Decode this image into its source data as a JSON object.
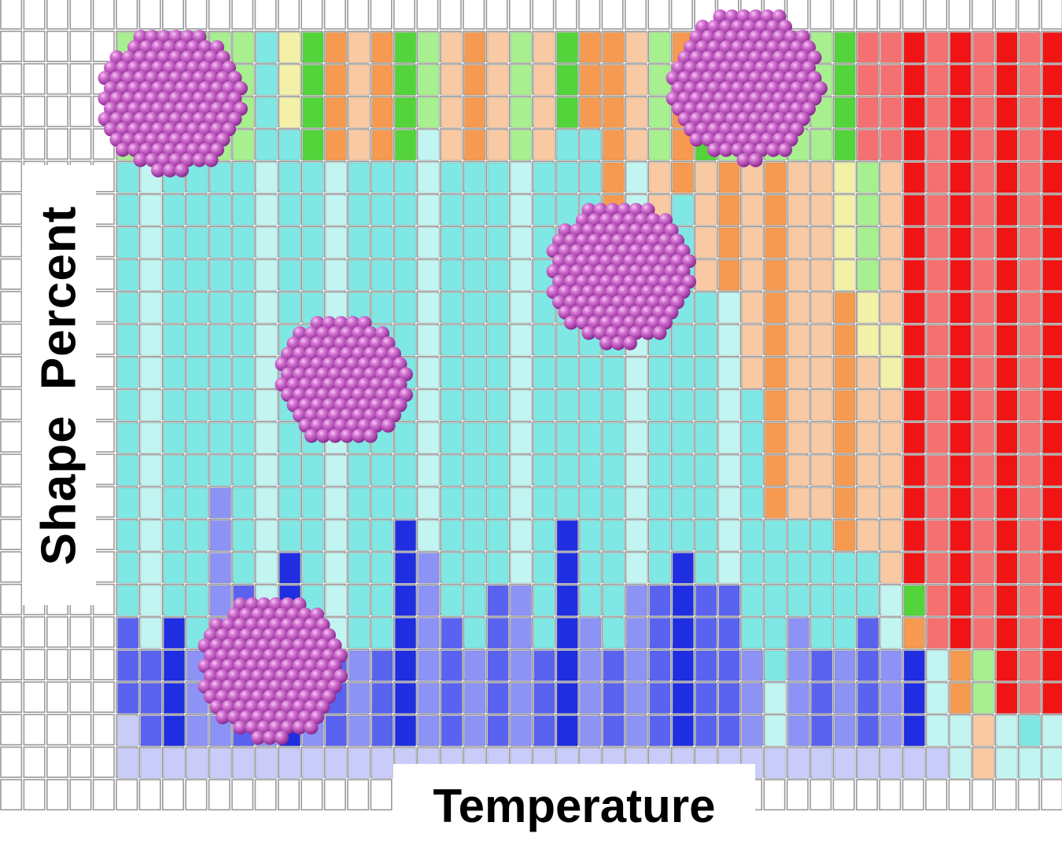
{
  "chart_data": {
    "type": "heatmap",
    "xlabel": "Temperature",
    "ylabel": "Shape Percent",
    "columns": 41,
    "rows": 23,
    "grid": true,
    "palette": {
      "empty": "#ffffff",
      "blue_dark": "#1f2ee0",
      "blue_mid": "#5a62f0",
      "blue_light": "#8d92f5",
      "blue_pale": "#c9ccf8",
      "cyan": "#7fe8e4",
      "cyan_pale": "#c2f5f1",
      "orange": "#f59a50",
      "orange_pale": "#f8c9a3",
      "green": "#52d43a",
      "green_pale": "#a8ef90",
      "yellow_pale": "#f3f1a8",
      "red": "#f01414",
      "red_pale": "#f57070",
      "particle": "#c65ac9"
    },
    "color_scale": [
      "blue_pale",
      "blue_mid",
      "blue_dark",
      "blue_light",
      "cyan",
      "cyan_pale",
      "orange",
      "orange_pale",
      "green",
      "green_pale",
      "yellow_pale",
      "red",
      "red_pale"
    ],
    "stacks": [
      [
        [
          2,
          "blue_pale"
        ],
        [
          3,
          "blue_mid"
        ],
        [
          14,
          "cyan"
        ],
        [
          4,
          "green_pale"
        ]
      ],
      [
        [
          1,
          "blue_pale"
        ],
        [
          3,
          "blue_mid"
        ],
        [
          15,
          "cyan_pale"
        ],
        [
          4,
          "green"
        ]
      ],
      [
        [
          1,
          "blue_pale"
        ],
        [
          4,
          "blue_dark"
        ],
        [
          14,
          "cyan"
        ],
        [
          4,
          "green_pale"
        ]
      ],
      [
        [
          1,
          "blue_pale"
        ],
        [
          3,
          "blue_light"
        ],
        [
          15,
          "cyan"
        ],
        [
          4,
          "green_pale"
        ]
      ],
      [
        [
          1,
          "blue_pale"
        ],
        [
          8,
          "blue_light"
        ],
        [
          10,
          "cyan"
        ],
        [
          4,
          "green_pale"
        ]
      ],
      [
        [
          1,
          "blue_pale"
        ],
        [
          5,
          "blue_mid"
        ],
        [
          13,
          "cyan"
        ],
        [
          4,
          "green_pale"
        ]
      ],
      [
        [
          1,
          "blue_pale"
        ],
        [
          3,
          "blue_light"
        ],
        [
          15,
          "cyan_pale"
        ],
        [
          4,
          "cyan"
        ]
      ],
      [
        [
          1,
          "blue_pale"
        ],
        [
          6,
          "blue_dark"
        ],
        [
          13,
          "cyan"
        ],
        [
          3,
          "yellow_pale"
        ]
      ],
      [
        [
          1,
          "blue_pale"
        ],
        [
          4,
          "blue_light"
        ],
        [
          14,
          "cyan"
        ],
        [
          4,
          "green"
        ]
      ],
      [
        [
          1,
          "blue_pale"
        ],
        [
          3,
          "blue_mid"
        ],
        [
          15,
          "cyan_pale"
        ],
        [
          4,
          "orange"
        ]
      ],
      [
        [
          1,
          "blue_pale"
        ],
        [
          3,
          "blue_light"
        ],
        [
          15,
          "cyan"
        ],
        [
          4,
          "orange_pale"
        ]
      ],
      [
        [
          1,
          "blue_pale"
        ],
        [
          3,
          "blue_mid"
        ],
        [
          15,
          "cyan"
        ],
        [
          4,
          "orange"
        ]
      ],
      [
        [
          1,
          "blue_pale"
        ],
        [
          7,
          "blue_dark"
        ],
        [
          11,
          "cyan"
        ],
        [
          4,
          "green"
        ]
      ],
      [
        [
          1,
          "blue_pale"
        ],
        [
          6,
          "blue_light"
        ],
        [
          13,
          "cyan_pale"
        ],
        [
          3,
          "green_pale"
        ]
      ],
      [
        [
          1,
          "blue_pale"
        ],
        [
          4,
          "blue_mid"
        ],
        [
          14,
          "cyan"
        ],
        [
          4,
          "orange_pale"
        ]
      ],
      [
        [
          1,
          "blue_pale"
        ],
        [
          3,
          "blue_light"
        ],
        [
          15,
          "cyan"
        ],
        [
          4,
          "orange"
        ]
      ],
      [
        [
          1,
          "blue_pale"
        ],
        [
          5,
          "blue_mid"
        ],
        [
          13,
          "cyan"
        ],
        [
          4,
          "orange_pale"
        ]
      ],
      [
        [
          1,
          "blue_pale"
        ],
        [
          5,
          "blue_light"
        ],
        [
          13,
          "cyan_pale"
        ],
        [
          4,
          "green_pale"
        ]
      ],
      [
        [
          1,
          "blue_pale"
        ],
        [
          3,
          "blue_mid"
        ],
        [
          15,
          "cyan"
        ],
        [
          4,
          "orange_pale"
        ]
      ],
      [
        [
          1,
          "blue_pale"
        ],
        [
          7,
          "blue_dark"
        ],
        [
          12,
          "cyan"
        ],
        [
          3,
          "green"
        ]
      ],
      [
        [
          1,
          "blue_pale"
        ],
        [
          4,
          "blue_light"
        ],
        [
          15,
          "cyan"
        ],
        [
          3,
          "orange"
        ]
      ],
      [
        [
          1,
          "blue_pale"
        ],
        [
          3,
          "blue_mid"
        ],
        [
          10,
          "cyan"
        ],
        [
          9,
          "orange"
        ]
      ],
      [
        [
          1,
          "blue_pale"
        ],
        [
          5,
          "blue_light"
        ],
        [
          13,
          "cyan_pale"
        ],
        [
          4,
          "orange_pale"
        ]
      ],
      [
        [
          1,
          "blue_pale"
        ],
        [
          5,
          "blue_mid"
        ],
        [
          9,
          "cyan"
        ],
        [
          4,
          "orange_pale"
        ],
        [
          4,
          "green_pale"
        ]
      ],
      [
        [
          1,
          "blue_pale"
        ],
        [
          6,
          "blue_dark"
        ],
        [
          11,
          "cyan"
        ],
        [
          5,
          "orange"
        ]
      ],
      [
        [
          1,
          "blue_pale"
        ],
        [
          5,
          "blue_mid"
        ],
        [
          9,
          "cyan"
        ],
        [
          4,
          "orange_pale"
        ],
        [
          4,
          "green"
        ]
      ],
      [
        [
          1,
          "blue_pale"
        ],
        [
          5,
          "blue_mid"
        ],
        [
          9,
          "cyan_pale"
        ],
        [
          4,
          "orange"
        ],
        [
          4,
          "green_pale"
        ]
      ],
      [
        [
          1,
          "blue_pale"
        ],
        [
          3,
          "blue_light"
        ],
        [
          8,
          "cyan"
        ],
        [
          7,
          "orange_pale"
        ],
        [
          4,
          "green_pale"
        ]
      ],
      [
        [
          1,
          "blue_pale"
        ],
        [
          2,
          "cyan_pale"
        ],
        [
          5,
          "cyan"
        ],
        [
          11,
          "orange"
        ],
        [
          4,
          "green_pale"
        ]
      ],
      [
        [
          1,
          "blue_pale"
        ],
        [
          4,
          "blue_light"
        ],
        [
          3,
          "cyan"
        ],
        [
          11,
          "orange_pale"
        ],
        [
          4,
          "green_pale"
        ]
      ],
      [
        [
          1,
          "blue_pale"
        ],
        [
          3,
          "blue_mid"
        ],
        [
          4,
          "cyan"
        ],
        [
          11,
          "orange_pale"
        ],
        [
          4,
          "green_pale"
        ]
      ],
      [
        [
          1,
          "blue_pale"
        ],
        [
          3,
          "blue_light"
        ],
        [
          3,
          "cyan"
        ],
        [
          8,
          "orange"
        ],
        [
          4,
          "yellow_pale"
        ],
        [
          4,
          "green"
        ]
      ],
      [
        [
          1,
          "blue_pale"
        ],
        [
          4,
          "blue_mid"
        ],
        [
          2,
          "cyan"
        ],
        [
          6,
          "orange_pale"
        ],
        [
          2,
          "yellow_pale"
        ],
        [
          4,
          "green_pale"
        ],
        [
          4,
          "red_pale"
        ]
      ],
      [
        [
          1,
          "blue_pale"
        ],
        [
          3,
          "blue_light"
        ],
        [
          2,
          "cyan_pale"
        ],
        [
          6,
          "orange_pale"
        ],
        [
          2,
          "yellow_pale"
        ],
        [
          5,
          "orange_pale"
        ],
        [
          4,
          "red_pale"
        ]
      ],
      [
        [
          1,
          "blue_pale"
        ],
        [
          3,
          "blue_dark"
        ],
        [
          1,
          "orange"
        ],
        [
          1,
          "green"
        ],
        [
          17,
          "red"
        ]
      ],
      [
        [
          1,
          "blue_pale"
        ],
        [
          3,
          "cyan_pale"
        ],
        [
          19,
          "red_pale"
        ]
      ],
      [
        [
          2,
          "cyan_pale"
        ],
        [
          2,
          "orange"
        ],
        [
          19,
          "red"
        ]
      ],
      [
        [
          2,
          "orange_pale"
        ],
        [
          2,
          "green_pale"
        ],
        [
          19,
          "red_pale"
        ]
      ],
      [
        [
          2,
          "cyan_pale"
        ],
        [
          21,
          "red"
        ]
      ],
      [
        [
          1,
          "cyan_pale"
        ],
        [
          1,
          "cyan"
        ],
        [
          21,
          "red_pale"
        ]
      ],
      [
        [
          2,
          "cyan_pale"
        ],
        [
          21,
          "red"
        ]
      ]
    ]
  }
}
